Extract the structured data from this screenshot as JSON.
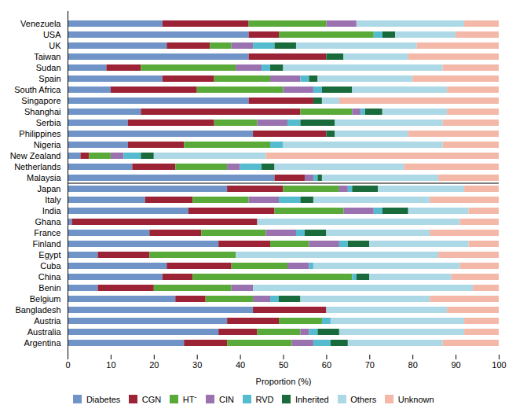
{
  "chart_data": {
    "type": "bar",
    "orientation": "horizontal",
    "stacked": true,
    "xlabel": "Proportion (%)",
    "xlim": [
      0,
      100
    ],
    "xticks": [
      0,
      10,
      20,
      30,
      40,
      50,
      60,
      70,
      80,
      90,
      100
    ],
    "grid": false,
    "legend": "bottom",
    "categories": [
      "Venezuela",
      "USA",
      "UK",
      "Taiwan",
      "Sudan",
      "Spain",
      "South Africa",
      "Singapore",
      "Shanghai",
      "Serbia",
      "Philippines",
      "Nigeria",
      "New Zealand",
      "Netherlands",
      "Malaysia",
      "Japan",
      "Italy",
      "India",
      "Ghana",
      "France",
      "Finland",
      "Egypt",
      "Cuba",
      "China",
      "Benin",
      "Belgium",
      "Bangladesh",
      "Austria",
      "Australia",
      "Argentina"
    ],
    "series": [
      {
        "name": "Diabetes",
        "color": "#7094c8",
        "values": [
          22,
          42,
          23,
          42,
          9,
          22,
          10,
          42,
          17,
          14,
          43,
          14,
          3,
          15,
          48,
          37,
          18,
          28,
          1,
          19,
          35,
          7,
          23,
          22,
          7,
          25,
          43,
          37,
          35,
          27
        ]
      },
      {
        "name": "CGN",
        "color": "#9b2335",
        "values": [
          20,
          7,
          10,
          18,
          8,
          12,
          20,
          15,
          37,
          20,
          17,
          13,
          2,
          10,
          7,
          13,
          11,
          20,
          43,
          12,
          12,
          12,
          15,
          7,
          13,
          7,
          17,
          12,
          9,
          10
        ]
      },
      {
        "name": "HT⁻",
        "color": "#5aaa3a",
        "values": [
          18,
          22,
          5,
          0,
          22,
          13,
          20,
          0,
          12,
          10,
          0,
          20,
          5,
          12,
          0,
          13,
          13,
          16,
          0,
          15,
          9,
          20,
          13,
          37,
          18,
          11,
          0,
          10,
          10,
          15
        ]
      },
      {
        "name": "CIN",
        "color": "#9b72b0",
        "values": [
          7,
          0,
          5,
          0,
          6,
          7,
          7,
          0,
          2,
          7,
          0,
          0,
          3,
          3,
          2,
          2,
          7,
          7,
          0,
          7,
          7,
          0,
          5,
          0,
          5,
          4,
          0,
          0,
          2,
          5
        ]
      },
      {
        "name": "RVD",
        "color": "#55bcd0",
        "values": [
          0,
          2,
          5,
          0,
          2,
          2,
          2,
          0,
          1,
          3,
          0,
          3,
          4,
          5,
          1,
          1,
          5,
          2,
          0,
          2,
          2,
          0,
          1,
          1,
          0,
          2,
          0,
          2,
          2,
          4
        ]
      },
      {
        "name": "Inherited",
        "color": "#1a6b3c",
        "values": [
          0,
          3,
          5,
          4,
          3,
          2,
          7,
          2,
          4,
          8,
          2,
          0,
          3,
          3,
          1,
          6,
          3,
          6,
          0,
          5,
          5,
          0,
          0,
          3,
          0,
          5,
          0,
          0,
          5,
          4
        ]
      },
      {
        "name": "Others",
        "color": "#add8e6",
        "values": [
          25,
          14,
          28,
          15,
          37,
          22,
          22,
          4,
          15,
          25,
          17,
          37,
          26,
          30,
          27,
          20,
          27,
          14,
          47,
          24,
          23,
          47,
          34,
          19,
          51,
          30,
          28,
          31,
          29,
          22
        ]
      },
      {
        "name": "Unknown",
        "color": "#f4b8a8",
        "values": [
          8,
          10,
          19,
          21,
          13,
          20,
          12,
          37,
          12,
          13,
          21,
          13,
          54,
          22,
          14,
          8,
          16,
          7,
          9,
          16,
          7,
          14,
          9,
          11,
          6,
          16,
          12,
          8,
          8,
          13
        ]
      }
    ]
  }
}
